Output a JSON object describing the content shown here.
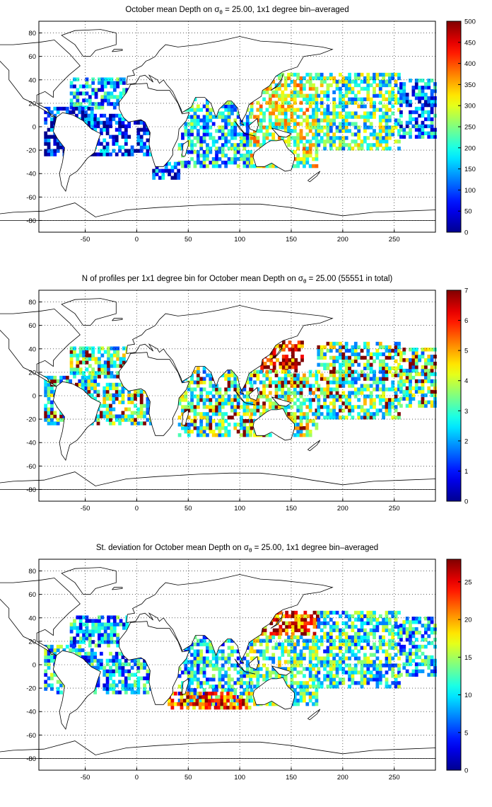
{
  "colors": {
    "jet": [
      "#00008f",
      "#0000ff",
      "#00ffff",
      "#ffff00",
      "#ff0000",
      "#800000"
    ],
    "land_outline": "#000000",
    "grid": "#000000",
    "background": "#ffffff"
  },
  "chart_data": [
    {
      "type": "heatmap",
      "title": "October mean Depth on σ_θ = 25.00, 1x1 degree bin–averaged",
      "title_parts": {
        "pre": "October mean Depth on σ",
        "sub": "θ",
        "post": " = 25.00, 1x1 degree bin–averaged"
      },
      "xlim": [
        -95,
        290
      ],
      "ylim": [
        -90,
        90
      ],
      "xticks": [
        -50,
        0,
        50,
        100,
        150,
        200,
        250
      ],
      "yticks": [
        -80,
        -60,
        -40,
        -20,
        0,
        20,
        40,
        60,
        80
      ],
      "grid": true,
      "colorbar": {
        "min": 0,
        "max": 500,
        "ticks": [
          0,
          50,
          100,
          150,
          200,
          250,
          300,
          350,
          400,
          450,
          500
        ]
      },
      "colormap": "jet"
    },
    {
      "type": "heatmap",
      "title": "N of profiles per 1x1 degree bin for October mean Depth on σ_θ = 25.00 (55551 in total)",
      "title_parts": {
        "pre": "N of profiles per 1x1 degree bin for October mean Depth on σ",
        "sub": "θ",
        "post": " = 25.00 (55551 in total)"
      },
      "xlim": [
        -95,
        290
      ],
      "ylim": [
        -90,
        90
      ],
      "xticks": [
        -50,
        0,
        50,
        100,
        150,
        200,
        250
      ],
      "yticks": [
        -80,
        -60,
        -40,
        -20,
        0,
        20,
        40,
        60,
        80
      ],
      "grid": true,
      "colorbar": {
        "min": 0,
        "max": 7,
        "ticks": [
          0,
          1,
          2,
          3,
          4,
          5,
          6,
          7
        ]
      },
      "colormap": "jet"
    },
    {
      "type": "heatmap",
      "title": "St. deviation for October mean Depth on σ_θ = 25.00, 1x1 degree bin–averaged",
      "title_parts": {
        "pre": "St. deviation for October mean Depth on σ",
        "sub": "θ",
        "post": " = 25.00, 1x1 degree bin–averaged"
      },
      "xlim": [
        -95,
        290
      ],
      "ylim": [
        -90,
        90
      ],
      "xticks": [
        -50,
        0,
        50,
        100,
        150,
        200,
        250
      ],
      "yticks": [
        -80,
        -60,
        -40,
        -20,
        0,
        20,
        40,
        60,
        80
      ],
      "grid": true,
      "colorbar": {
        "min": 0,
        "max": 28,
        "ticks": [
          0,
          5,
          10,
          15,
          20,
          25
        ]
      },
      "colormap": "jet"
    }
  ]
}
